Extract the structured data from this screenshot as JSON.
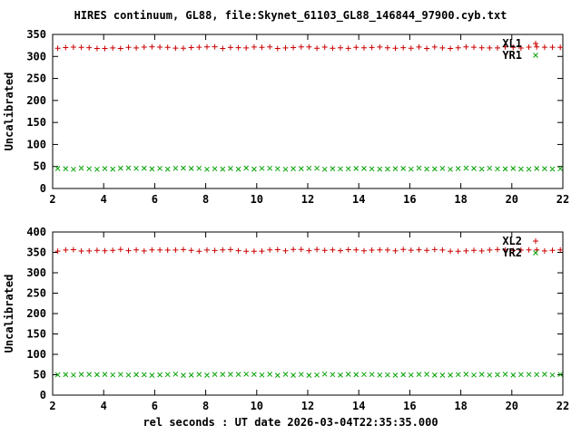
{
  "figure": {
    "title": "HIRES continuum, GL88, file:Skynet_61103_GL88_146844_97900.cyb.txt",
    "xlabel": "rel seconds : UT date 2026-03-04T22:35:35.000"
  },
  "colors": {
    "series_red": "#cc0000",
    "series_green": "#00a000",
    "axis": "#000000"
  },
  "chart_data": [
    {
      "type": "scatter",
      "title": "",
      "xlabel": "",
      "ylabel": "Uncalibrated",
      "xlim": [
        2,
        22
      ],
      "ylim": [
        0,
        350
      ],
      "xticks": [
        2,
        4,
        6,
        8,
        10,
        12,
        14,
        16,
        18,
        20,
        22
      ],
      "yticks": [
        0,
        50,
        100,
        150,
        200,
        250,
        300,
        350
      ],
      "grid": false,
      "legend_position": "top-right",
      "series": [
        {
          "name": "XL1",
          "marker": "plus",
          "color": "#cc0000",
          "x_start": 2.2,
          "x_end": 21.9,
          "n_points": 65,
          "value": 320,
          "jitter": 2
        },
        {
          "name": "YR1",
          "marker": "cross",
          "color": "#00a000",
          "x_start": 2.2,
          "x_end": 21.9,
          "n_points": 65,
          "value": 45,
          "jitter": 1.5
        }
      ]
    },
    {
      "type": "scatter",
      "title": "",
      "xlabel": "rel seconds : UT date 2026-03-04T22:35:35.000",
      "ylabel": "Uncalibrated",
      "xlim": [
        2,
        22
      ],
      "ylim": [
        0,
        400
      ],
      "xticks": [
        2,
        4,
        6,
        8,
        10,
        12,
        14,
        16,
        18,
        20,
        22
      ],
      "yticks": [
        0,
        50,
        100,
        150,
        200,
        250,
        300,
        350,
        400
      ],
      "grid": false,
      "legend_position": "top-right",
      "series": [
        {
          "name": "XL2",
          "marker": "plus",
          "color": "#cc0000",
          "x_start": 2.2,
          "x_end": 21.9,
          "n_points": 65,
          "value": 355,
          "jitter": 2.5
        },
        {
          "name": "YR2",
          "marker": "cross",
          "color": "#00a000",
          "x_start": 2.2,
          "x_end": 21.9,
          "n_points": 65,
          "value": 50,
          "jitter": 1.5
        }
      ]
    }
  ]
}
